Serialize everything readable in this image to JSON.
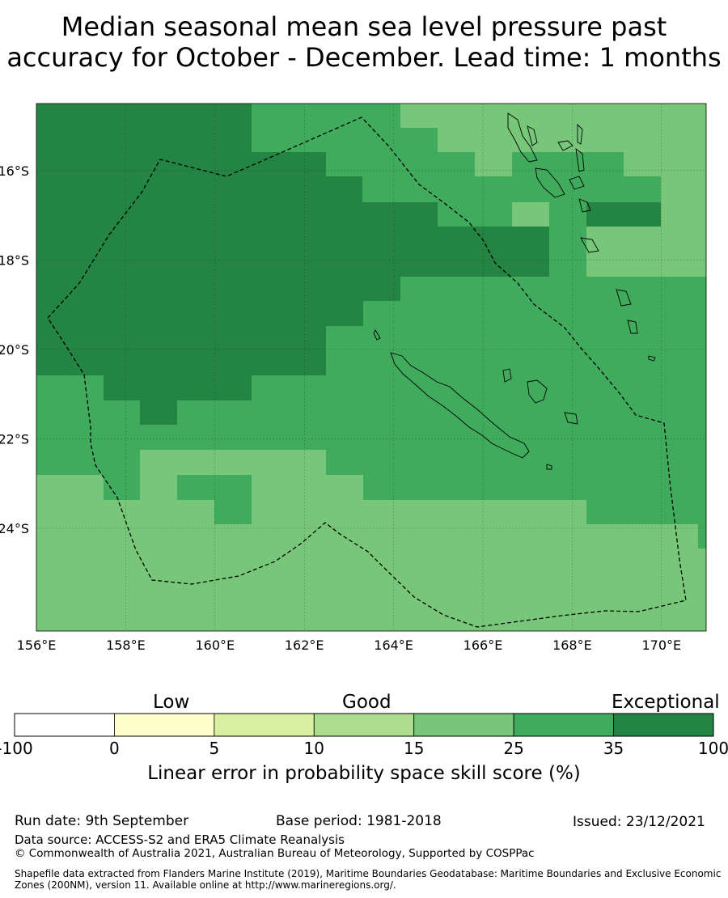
{
  "title": {
    "line1": "Median seasonal mean sea level pressure past",
    "line2": "accuracy for October - December. Lead time: 1 months"
  },
  "map": {
    "lon_range": [
      156,
      171
    ],
    "lat_range": [
      -14.5,
      -26.3
    ],
    "lon_ticks": [
      {
        "value": 156,
        "label": "156°E"
      },
      {
        "value": 158,
        "label": "158°E"
      },
      {
        "value": 160,
        "label": "160°E"
      },
      {
        "value": 162,
        "label": "162°E"
      },
      {
        "value": 164,
        "label": "164°E"
      },
      {
        "value": 166,
        "label": "166°E"
      },
      {
        "value": 168,
        "label": "168°E"
      },
      {
        "value": 170,
        "label": "170°E"
      }
    ],
    "lat_ticks": [
      {
        "value": -16,
        "label": "16°S"
      },
      {
        "value": -18,
        "label": "18°S"
      },
      {
        "value": -20,
        "label": "20°S"
      },
      {
        "value": -22,
        "label": "22°S"
      },
      {
        "value": -24,
        "label": "24°S"
      }
    ],
    "skill_colors": {
      "good": "#78c679",
      "very_good": "#41ab5d",
      "exceptional": "#238443"
    }
  },
  "colorbar": {
    "categories": [
      {
        "label": "Low"
      },
      {
        "label": "Good"
      },
      {
        "label": "Exceptional"
      }
    ],
    "bins": [
      {
        "color": "#ffffff"
      },
      {
        "color": "#ffffcc"
      },
      {
        "color": "#d9f0a3"
      },
      {
        "color": "#addd8e"
      },
      {
        "color": "#78c679"
      },
      {
        "color": "#41ab5d"
      },
      {
        "color": "#238443"
      }
    ],
    "ticks": [
      "-100",
      "0",
      "5",
      "10",
      "15",
      "25",
      "35",
      "100"
    ],
    "label": "Linear error in probability space skill score (%)"
  },
  "footer": {
    "run_date": "Run date: 9th September",
    "base_period": "Base period: 1981-2018",
    "issued": "Issued: 23/12/2021",
    "data_source": "Data source: ACCESS-S2 and ERA5 Climate Reanalysis",
    "copyright": "© Commonwealth of Australia 2021, Australian Bureau of Meteorology, Supported by COSPPac",
    "shapefile": "Shapefile data extracted from Flanders Marine Institute (2019), Maritime Boundaries Geodatabase: Maritime Boundaries and Exclusive Economic Zones (200NM), version 11. Available online at http://www.marineregions.org/."
  }
}
